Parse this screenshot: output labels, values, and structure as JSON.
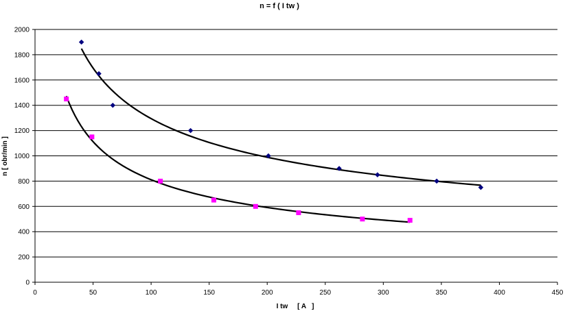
{
  "chart_data": {
    "type": "scatter",
    "title": "n = f ( I tw   )",
    "xlabel": "I tw     [ A   ]",
    "ylabel": "n [ obr/min ]",
    "xlim": [
      0,
      450
    ],
    "ylim": [
      0,
      2000
    ],
    "xticks": [
      "0",
      "50",
      "100",
      "150",
      "200",
      "250",
      "300",
      "350",
      "400",
      "450"
    ],
    "yticks": [
      "0",
      "200",
      "400",
      "600",
      "800",
      "1000",
      "1200",
      "1400",
      "1600",
      "1800",
      "2000"
    ],
    "grid": "horizontal",
    "legend": "none",
    "series": [
      {
        "marker": "diamond",
        "color": "#000080",
        "trendline": "power",
        "x": [
          40,
          55,
          67,
          134,
          201,
          262,
          295,
          346,
          384
        ],
        "y": [
          1900,
          1650,
          1400,
          1200,
          1000,
          900,
          850,
          800,
          750
        ]
      },
      {
        "marker": "square",
        "color": "#ff00ff",
        "trendline": "power",
        "x": [
          27,
          49,
          108,
          154,
          190,
          227,
          282,
          323
        ],
        "y": [
          1450,
          1150,
          800,
          650,
          600,
          550,
          500,
          490
        ]
      }
    ]
  }
}
